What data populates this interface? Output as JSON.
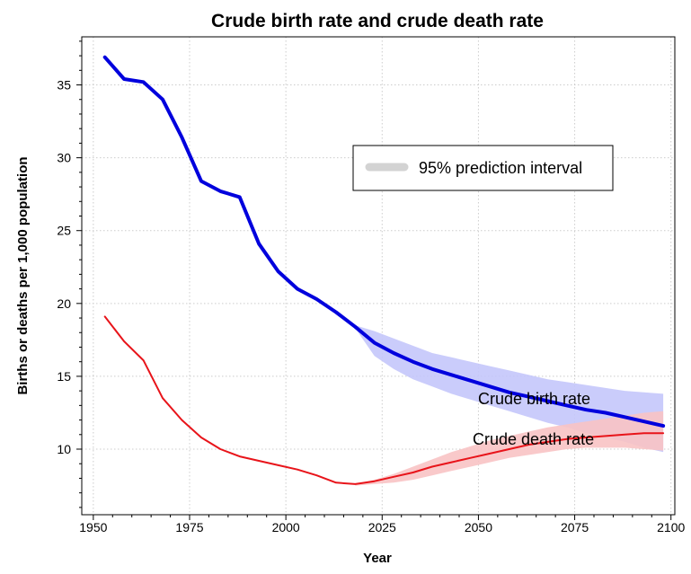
{
  "chart_data": {
    "type": "line",
    "title": "Crude birth rate and crude death rate",
    "xlabel": "Year",
    "ylabel": "Births or deaths per 1,000 population",
    "xlim": [
      1947,
      2101
    ],
    "ylim": [
      5.5,
      38.3
    ],
    "grid": true,
    "x_ticks": [
      1950,
      1975,
      2000,
      2025,
      2050,
      2075,
      2100
    ],
    "y_ticks": [
      10,
      15,
      20,
      25,
      30,
      35
    ],
    "legend": {
      "label": "95% prediction interval",
      "placement": "top-right"
    },
    "series": [
      {
        "name": "Crude birth rate",
        "color": "#0000dd",
        "band_color": "#c4c6fb",
        "x": [
          1953,
          1958,
          1963,
          1968,
          1973,
          1978,
          1983,
          1988,
          1993,
          1998,
          2003,
          2008,
          2013,
          2018,
          2023,
          2028,
          2033,
          2038,
          2043,
          2048,
          2053,
          2058,
          2063,
          2068,
          2073,
          2078,
          2083,
          2088,
          2093,
          2098
        ],
        "y": [
          36.9,
          35.4,
          35.2,
          34.0,
          31.4,
          28.4,
          27.7,
          27.3,
          24.1,
          22.2,
          21.0,
          20.3,
          19.4,
          18.4,
          17.3,
          16.6,
          16.0,
          15.5,
          15.1,
          14.7,
          14.3,
          13.9,
          13.6,
          13.3,
          13.0,
          12.7,
          12.5,
          12.2,
          11.9,
          11.6
        ],
        "interval": {
          "x": [
            2018,
            2023,
            2028,
            2033,
            2038,
            2043,
            2048,
            2053,
            2058,
            2063,
            2068,
            2073,
            2078,
            2083,
            2088,
            2093,
            2098
          ],
          "lower": [
            18.3,
            16.4,
            15.5,
            14.8,
            14.3,
            13.8,
            13.4,
            13.0,
            12.6,
            12.2,
            11.8,
            11.5,
            11.1,
            10.8,
            10.5,
            10.1,
            9.8
          ],
          "upper": [
            18.5,
            18.1,
            17.6,
            17.1,
            16.6,
            16.3,
            16.0,
            15.7,
            15.4,
            15.1,
            14.8,
            14.6,
            14.4,
            14.2,
            14.0,
            13.9,
            13.8
          ]
        }
      },
      {
        "name": "Crude death rate",
        "color": "#e8141a",
        "band_color": "#f8c3c4",
        "x": [
          1953,
          1958,
          1963,
          1968,
          1973,
          1978,
          1983,
          1988,
          1993,
          1998,
          2003,
          2008,
          2013,
          2018,
          2023,
          2028,
          2033,
          2038,
          2043,
          2048,
          2053,
          2058,
          2063,
          2068,
          2073,
          2078,
          2083,
          2088,
          2093,
          2098
        ],
        "y": [
          19.1,
          17.4,
          16.1,
          13.5,
          12.0,
          10.8,
          10.0,
          9.5,
          9.2,
          8.9,
          8.6,
          8.2,
          7.7,
          7.6,
          7.8,
          8.1,
          8.4,
          8.8,
          9.1,
          9.4,
          9.7,
          10.0,
          10.3,
          10.5,
          10.7,
          10.8,
          10.9,
          11.0,
          11.1,
          11.1
        ],
        "interval": {
          "x": [
            2018,
            2023,
            2028,
            2033,
            2038,
            2043,
            2048,
            2053,
            2058,
            2063,
            2068,
            2073,
            2078,
            2083,
            2088,
            2093,
            2098
          ],
          "lower": [
            7.5,
            7.6,
            7.7,
            7.9,
            8.2,
            8.5,
            8.8,
            9.1,
            9.4,
            9.6,
            9.8,
            10.0,
            10.1,
            10.1,
            10.1,
            10.0,
            9.9
          ],
          "upper": [
            7.6,
            7.9,
            8.3,
            8.8,
            9.3,
            9.8,
            10.2,
            10.6,
            10.9,
            11.2,
            11.5,
            11.7,
            11.9,
            12.1,
            12.3,
            12.5,
            12.6
          ]
        }
      }
    ]
  }
}
